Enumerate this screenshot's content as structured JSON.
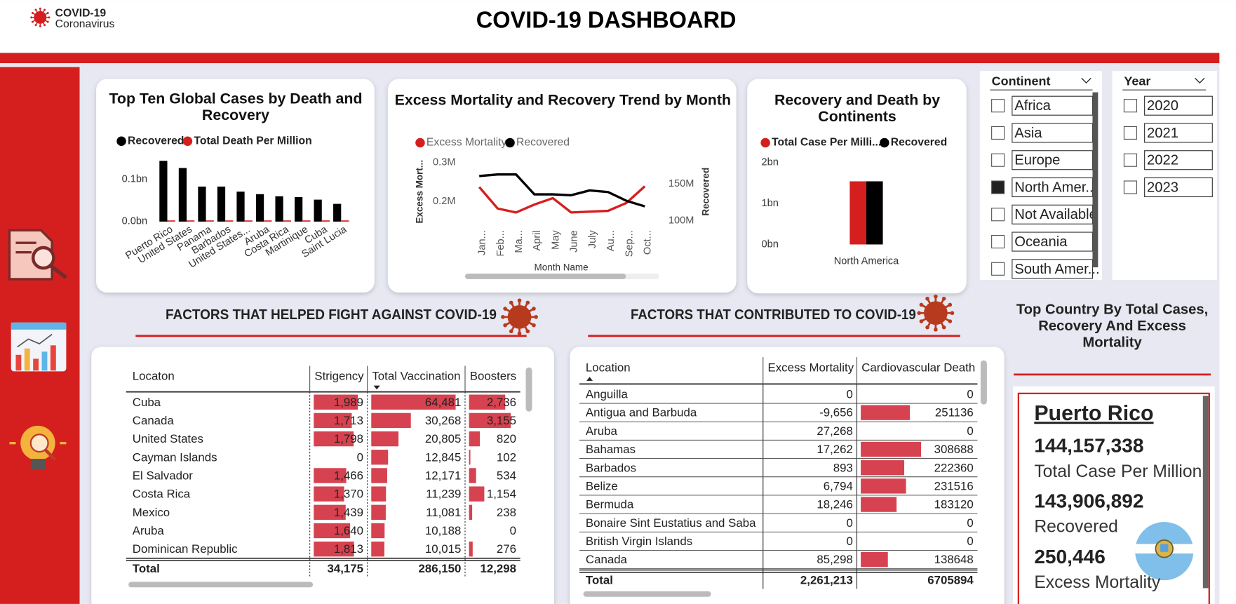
{
  "header": {
    "logo_title": "COVID-19",
    "logo_subtitle": "Coronavirus",
    "title": "COVID-19 DASHBOARD"
  },
  "chart_data": [
    {
      "type": "bar",
      "title": "Top Ten Global Cases by Death and Recovery",
      "categories": [
        "Puerto Rico",
        "United States",
        "Panama",
        "Barbados",
        "United States...",
        "Aruba",
        "Costa Rica",
        "Martinique",
        "Cuba",
        "Saint Lucia"
      ],
      "series": [
        {
          "name": "Recovered",
          "color": "#000000",
          "values": [
            0.144,
            0.127,
            0.083,
            0.083,
            0.071,
            0.065,
            0.06,
            0.058,
            0.052,
            0.042
          ]
        },
        {
          "name": "Total Death Per Million",
          "color": "#d51f1f",
          "values": [
            4e-06,
            3e-06,
            4e-06,
            3e-06,
            3e-06,
            2e-06,
            4e-06,
            3e-06,
            1e-06,
            2e-06
          ]
        }
      ],
      "ylim": [
        0,
        0.17
      ],
      "yticks": [
        {
          "value": 0,
          "label": "0.0bn"
        },
        {
          "value": 0.1,
          "label": "0.1bn"
        }
      ]
    },
    {
      "type": "line",
      "title": "Excess Mortality and Recovery Trend by Month",
      "x_label": "Month Name",
      "y_label": "Excess Mort...",
      "y2_label": "Recovered",
      "categories": [
        "Jan...",
        "Feb...",
        "Ma...",
        "April",
        "May",
        "June",
        "July",
        "Au...",
        "Sep...",
        "Oct..."
      ],
      "series": [
        {
          "name": "Excess Mortality",
          "color": "#d51f1f",
          "values": [
            236700,
            181600,
            171400,
            191800,
            208200,
            171400,
            173500,
            175500,
            195900,
            238800
          ]
        },
        {
          "name": "Recovered",
          "color": "#000000",
          "axis": "y2",
          "values": [
            160900000,
            163000000,
            163000000,
            135900000,
            135900000,
            134800000,
            141300000,
            139100000,
            127200000,
            119600000
          ]
        }
      ],
      "ylim": [
        150000,
        320000
      ],
      "yticks": [
        {
          "value": 200000,
          "label": "0.2M"
        },
        {
          "value": 300000,
          "label": "0.3M"
        }
      ],
      "y2lim": [
        100000000,
        190000000
      ],
      "y2ticks": [
        {
          "value": 100000000,
          "label": "100M"
        },
        {
          "value": 150000000,
          "label": "150M"
        }
      ]
    },
    {
      "type": "bar",
      "title": "Recovery and Death by Continents",
      "categories": [
        "North America"
      ],
      "series": [
        {
          "name": "Total Case Per Milli...",
          "color": "#d51f1f",
          "values": [
            1.54
          ]
        },
        {
          "name": "Recovered",
          "color": "#000000",
          "values": [
            1.54
          ]
        }
      ],
      "ylim": [
        0,
        2
      ],
      "yticks": [
        {
          "value": 0,
          "label": "0bn"
        },
        {
          "value": 1,
          "label": "1bn"
        },
        {
          "value": 2,
          "label": "2bn"
        }
      ]
    }
  ],
  "slicers": [
    {
      "title": "Continent",
      "items": [
        {
          "label": "Africa",
          "checked": false
        },
        {
          "label": "Asia",
          "checked": false
        },
        {
          "label": "Europe",
          "checked": false
        },
        {
          "label": "North Amer...",
          "checked": true
        },
        {
          "label": "Not Available",
          "checked": false
        },
        {
          "label": "Oceania",
          "checked": false
        },
        {
          "label": "South Amer...",
          "checked": false
        }
      ]
    },
    {
      "title": "Year",
      "items": [
        {
          "label": "2020",
          "checked": false
        },
        {
          "label": "2021",
          "checked": false
        },
        {
          "label": "2022",
          "checked": false
        },
        {
          "label": "2023",
          "checked": false
        }
      ]
    }
  ],
  "sections": {
    "helped": "FACTORS THAT HELPED FIGHT AGAINST COVID-19",
    "contributed": "FACTORS THAT CONTRIBUTED TO COVID-19",
    "top_country": "Top Country By Total Cases, Recovery And Excess Mortality"
  },
  "tables": [
    {
      "bar_color": "#d6424f",
      "columns": [
        "Locaton",
        "Strigency",
        "Total Vaccination",
        "Boosters"
      ],
      "rows": [
        [
          "Cuba",
          "1,989",
          "64,481",
          "2,736"
        ],
        [
          "Canada",
          "1,713",
          "30,268",
          "3,155"
        ],
        [
          "United States",
          "1,798",
          "20,805",
          "820"
        ],
        [
          "Cayman Islands",
          "0",
          "12,845",
          "102"
        ],
        [
          "El Salvador",
          "1,466",
          "12,171",
          "534"
        ],
        [
          "Costa Rica",
          "1,370",
          "11,239",
          "1,154"
        ],
        [
          "Mexico",
          "1,439",
          "11,081",
          "238"
        ],
        [
          "Aruba",
          "1,640",
          "10,188",
          "0"
        ],
        [
          "Dominican Republic",
          "1,813",
          "10,015",
          "276"
        ]
      ],
      "total": [
        "Total",
        "34,175",
        "286,150",
        "12,298"
      ]
    },
    {
      "bar_color": "#d6424f",
      "columns": [
        "Location",
        "Excess Mortality",
        "Cardiovascular Death"
      ],
      "rows": [
        [
          "Anguilla",
          "0",
          "0"
        ],
        [
          "Antigua and Barbuda",
          "-9,656",
          "251136"
        ],
        [
          "Aruba",
          "27,268",
          "0"
        ],
        [
          "Bahamas",
          "17,262",
          "308688"
        ],
        [
          "Barbados",
          "893",
          "222360"
        ],
        [
          "Belize",
          "6,794",
          "231516"
        ],
        [
          "Bermuda",
          "18,246",
          "183120"
        ],
        [
          "Bonaire Sint Eustatius and Saba",
          "0",
          "0"
        ],
        [
          "British Virgin Islands",
          "0",
          "0"
        ],
        [
          "Canada",
          "85,298",
          "138648"
        ]
      ],
      "total": [
        "Total",
        "2,261,213",
        "6705894"
      ]
    }
  ],
  "card": {
    "country": "Puerto Rico",
    "metrics": [
      {
        "value": "144,157,338",
        "label": "Total Case Per Million"
      },
      {
        "value": "143,906,892",
        "label": "Recovered"
      },
      {
        "value": "250,446",
        "label": "Excess Mortality"
      }
    ]
  }
}
